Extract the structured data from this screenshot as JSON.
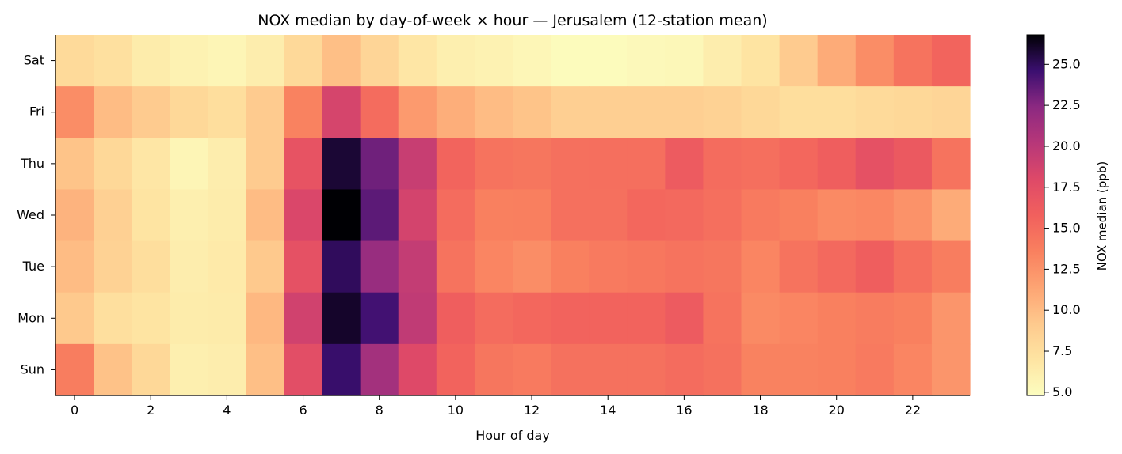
{
  "chart_data": {
    "type": "heatmap",
    "title": "NOX median by day-of-week × hour — Jerusalem (12-station mean)",
    "xlabel": "Hour of day",
    "ylabel": "",
    "colorbar_label": "NOX median (ppb)",
    "colormap": "magma_r",
    "x": [
      0,
      1,
      2,
      3,
      4,
      5,
      6,
      7,
      8,
      9,
      10,
      11,
      12,
      13,
      14,
      15,
      16,
      17,
      18,
      19,
      20,
      21,
      22,
      23
    ],
    "x_ticks": [
      0,
      2,
      4,
      6,
      8,
      10,
      12,
      14,
      16,
      18,
      20,
      22
    ],
    "y": [
      "Sat",
      "Fri",
      "Thu",
      "Wed",
      "Tue",
      "Mon",
      "Sun"
    ],
    "zlim": [
      4.8,
      26.8
    ],
    "colorbar_ticks": [
      "5.0",
      "7.5",
      "10.0",
      "12.5",
      "15.0",
      "17.5",
      "20.0",
      "22.5",
      "25.0"
    ],
    "grid": false,
    "values": [
      [
        7.8,
        7.3,
        6.3,
        5.8,
        5.5,
        6.2,
        7.9,
        9.8,
        8.2,
        6.8,
        6.0,
        5.8,
        5.4,
        5.0,
        5.0,
        5.2,
        5.3,
        6.2,
        7.0,
        9.0,
        11.0,
        12.8,
        14.5,
        15.5
      ],
      [
        12.8,
        10.0,
        9.0,
        8.0,
        7.5,
        9.0,
        13.5,
        18.5,
        15.0,
        12.0,
        10.8,
        10.0,
        9.5,
        8.7,
        8.7,
        8.7,
        8.7,
        8.5,
        8.0,
        7.5,
        7.5,
        7.8,
        8.0,
        8.2
      ],
      [
        9.5,
        8.0,
        6.8,
        5.5,
        6.2,
        9.0,
        17.0,
        25.8,
        23.2,
        19.3,
        15.5,
        14.5,
        14.3,
        14.7,
        14.8,
        14.8,
        16.3,
        15.0,
        14.8,
        15.3,
        16.0,
        17.2,
        16.5,
        14.5
      ],
      [
        10.5,
        8.6,
        7.0,
        6.0,
        6.3,
        10.0,
        18.2,
        26.8,
        23.7,
        18.6,
        15.0,
        13.6,
        13.7,
        14.7,
        14.7,
        15.3,
        15.2,
        14.8,
        14.0,
        13.6,
        13.0,
        13.2,
        12.5,
        11.0
      ],
      [
        10.0,
        8.5,
        7.5,
        6.2,
        6.5,
        9.2,
        17.2,
        25.0,
        21.8,
        19.5,
        14.5,
        13.3,
        12.8,
        13.6,
        14.0,
        14.2,
        14.5,
        14.3,
        13.3,
        14.5,
        15.2,
        16.0,
        14.8,
        13.8
      ],
      [
        9.2,
        7.4,
        7.0,
        6.3,
        6.4,
        10.2,
        18.8,
        26.0,
        24.4,
        19.7,
        16.0,
        15.0,
        15.3,
        15.6,
        15.6,
        15.6,
        16.3,
        14.5,
        13.0,
        13.3,
        13.6,
        13.9,
        13.6,
        12.3
      ],
      [
        13.8,
        9.6,
        8.0,
        6.0,
        6.2,
        9.8,
        17.5,
        24.7,
        21.2,
        18.0,
        15.6,
        14.3,
        14.0,
        14.6,
        14.6,
        14.6,
        15.0,
        14.6,
        13.5,
        13.5,
        13.6,
        14.0,
        13.3,
        12.3
      ]
    ]
  }
}
